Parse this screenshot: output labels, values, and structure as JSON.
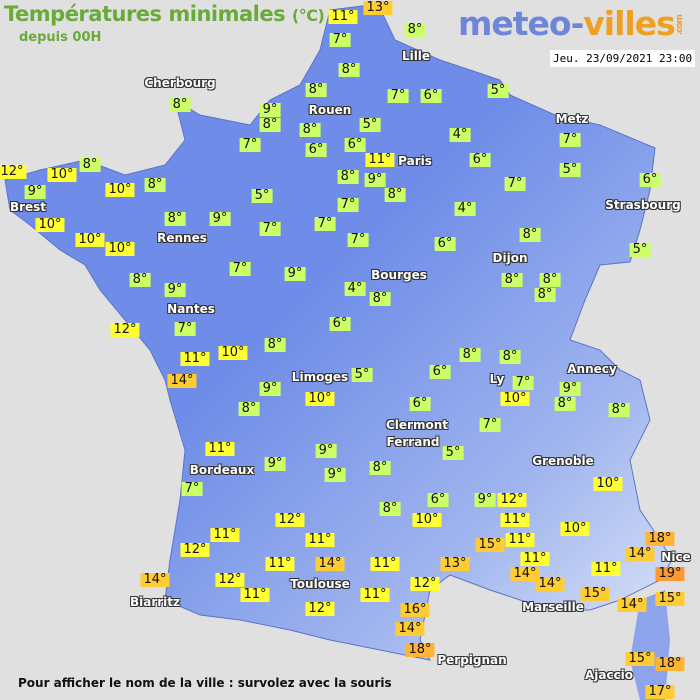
{
  "header": {
    "title": "Températures minimales",
    "unit": "(°C)",
    "subtitle": "depuis 00H",
    "logo": "meteo-villes.com",
    "logo_main": "meteo-",
    "logo_accent": "villes",
    "logo_suffix": ".com",
    "datetime": "Jeu. 23/09/2021 23:00"
  },
  "footer": "Pour afficher le nom de la ville : survolez avec la souris",
  "colors": {
    "sea": "#e1e0e0",
    "land_lowland": "#6f8de8",
    "land_highland": "#c9d6f5",
    "cold": "#ccff66",
    "mild": "#ffff33",
    "warm": "#ffcc33",
    "hot": "#ff9933"
  },
  "temperatures": [
    11,
    13,
    8,
    7,
    8,
    8,
    9,
    8,
    8,
    7,
    6,
    5,
    8,
    5,
    6,
    6,
    4,
    7,
    8,
    12,
    10,
    9,
    10,
    8,
    11,
    6,
    7,
    5,
    5,
    8,
    9,
    8,
    7,
    6,
    7,
    4,
    10,
    8,
    9,
    7,
    7,
    10,
    10,
    7,
    6,
    8,
    5,
    7,
    9,
    8,
    9,
    4,
    8,
    8,
    8,
    8,
    12,
    7,
    6,
    8,
    8,
    11,
    10,
    14,
    8,
    5,
    6,
    7,
    9,
    10,
    8,
    9,
    8,
    10,
    6,
    8,
    7,
    11,
    9,
    5,
    9,
    9,
    8,
    7,
    8,
    6,
    10,
    9,
    12,
    11,
    10,
    12,
    10,
    11,
    18,
    11,
    11,
    15,
    12,
    14,
    14,
    11,
    13,
    11,
    14,
    11,
    19,
    11,
    14,
    12,
    12,
    14,
    15,
    11,
    11,
    15,
    14,
    12,
    16,
    14,
    18,
    15,
    18,
    17
  ],
  "cities": [
    "Cherbourg",
    "Rouen",
    "Lille",
    "Paris",
    "Metz",
    "Strasbourg",
    "Brest",
    "Rennes",
    "Dijon",
    "Bourges",
    "Nantes",
    "Annecy",
    "Limoges",
    "Ly",
    "Clermont",
    "Ferrand",
    "Grenoble",
    "Bordeaux",
    "Toulouse",
    "Biarritz",
    "Marseille",
    "Nice",
    "Ajaccio",
    "Perpignan"
  ]
}
